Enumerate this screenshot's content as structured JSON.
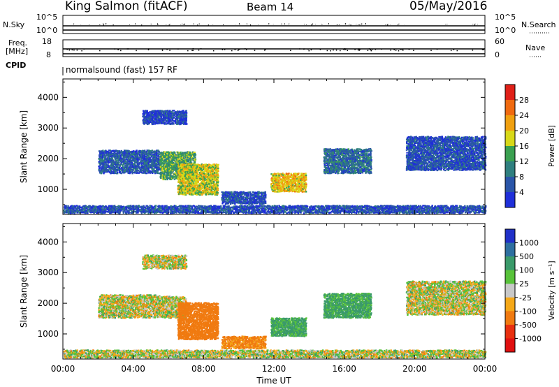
{
  "header": {
    "station": "King Salmon (fitACF)",
    "beam": "Beam 14",
    "date": "05/May/2016"
  },
  "panels": {
    "nsky": {
      "label": "N.Sky",
      "ytick_top": "10^5",
      "ytick_bottom": "10^0"
    },
    "nsearch": {
      "label": "N.Search",
      "ytick_top": "10^5",
      "ytick_bottom": "10^0"
    },
    "freq": {
      "label_line1": "Freq.",
      "label_line2": "[MHz]",
      "ytick_top": "18",
      "ytick_bottom": "8"
    },
    "nave": {
      "label": "Nave",
      "ytick_top": "60",
      "ytick_bottom": "0"
    },
    "cpid": {
      "label": "CPID",
      "text": "normalsound (fast) 157 RF"
    }
  },
  "chart_data": [
    {
      "type": "heatmap",
      "title": "",
      "xlabel": "Time UT",
      "ylabel": "Slant Range [km]",
      "xlim": [
        0,
        24
      ],
      "ylim": [
        180,
        4600
      ],
      "xticks": [
        "00:00",
        "04:00",
        "08:00",
        "12:00",
        "16:00",
        "20:00",
        "00:00"
      ],
      "yticks": [
        1000,
        2000,
        3000,
        4000
      ],
      "colorbar": {
        "label": "Power [dB]",
        "ticks": [
          "4",
          "8",
          "12",
          "16",
          "20",
          "24",
          "28"
        ],
        "colors": [
          "#1f2fd9",
          "#2a55a8",
          "#2f7f7f",
          "#3aa050",
          "#d8d818",
          "#f0a010",
          "#f06a10",
          "#e02018"
        ]
      },
      "echo_regions": [
        {
          "t": [
            2.0,
            5.5
          ],
          "r": [
            1500,
            2250
          ],
          "value": 6
        },
        {
          "t": [
            5.5,
            7.5
          ],
          "r": [
            1300,
            2200
          ],
          "value": 13
        },
        {
          "t": [
            6.5,
            8.8
          ],
          "r": [
            800,
            1800
          ],
          "value": 18
        },
        {
          "t": [
            4.5,
            7.0
          ],
          "r": [
            3100,
            3550
          ],
          "value": 4
        },
        {
          "t": [
            11.8,
            13.8
          ],
          "r": [
            900,
            1500
          ],
          "value": 20
        },
        {
          "t": [
            14.8,
            17.5
          ],
          "r": [
            1500,
            2300
          ],
          "value": 8
        },
        {
          "t": [
            19.5,
            24.0
          ],
          "r": [
            1600,
            2700
          ],
          "value": 5
        },
        {
          "t": [
            9.0,
            11.5
          ],
          "r": [
            500,
            900
          ],
          "value": 5
        },
        {
          "t": [
            0.0,
            24.0
          ],
          "r": [
            200,
            450
          ],
          "value": 5
        }
      ]
    },
    {
      "type": "heatmap",
      "title": "",
      "xlabel": "Time UT",
      "ylabel": "Slant Range [km]",
      "xlim": [
        0,
        24
      ],
      "ylim": [
        180,
        4600
      ],
      "xticks": [
        "00:00",
        "04:00",
        "08:00",
        "12:00",
        "16:00",
        "20:00",
        "00:00"
      ],
      "yticks": [
        1000,
        2000,
        3000,
        4000
      ],
      "colorbar": {
        "label": "Velocity [m s⁻¹]",
        "ticks": [
          "1000",
          "500",
          "100",
          "25",
          "-25",
          "-100",
          "-500",
          "-1000"
        ],
        "colors": [
          "#2030c8",
          "#2e6fa0",
          "#3a9a6a",
          "#58c23a",
          "#c8c8c8",
          "#f5a818",
          "#f07a10",
          "#e83010",
          "#e01010"
        ]
      },
      "echo_regions": [
        {
          "t": [
            2.0,
            5.5
          ],
          "r": [
            1500,
            2250
          ],
          "value": 0
        },
        {
          "t": [
            5.5,
            7.0
          ],
          "r": [
            1500,
            2200
          ],
          "value": 0
        },
        {
          "t": [
            6.5,
            8.8
          ],
          "r": [
            800,
            2000
          ],
          "value": -300
        },
        {
          "t": [
            4.5,
            7.0
          ],
          "r": [
            3100,
            3550
          ],
          "value": 0
        },
        {
          "t": [
            11.8,
            13.8
          ],
          "r": [
            900,
            1500
          ],
          "value": 150
        },
        {
          "t": [
            14.8,
            17.5
          ],
          "r": [
            1500,
            2300
          ],
          "value": 150
        },
        {
          "t": [
            19.5,
            24.0
          ],
          "r": [
            1600,
            2700
          ],
          "value": 0
        },
        {
          "t": [
            9.0,
            11.5
          ],
          "r": [
            500,
            900
          ],
          "value": -150
        },
        {
          "t": [
            0.0,
            24.0
          ],
          "r": [
            200,
            450
          ],
          "value": 10
        }
      ]
    }
  ]
}
